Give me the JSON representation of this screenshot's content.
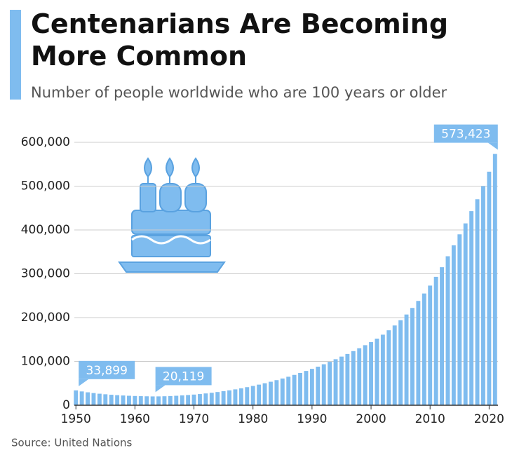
{
  "chart_data": {
    "type": "bar",
    "title": "Centenarians Are Becoming More Common",
    "subtitle": "Number of people worldwide who are 100 years or older",
    "source": "Source: United Nations",
    "color": "#7fbcef",
    "x": [
      1950,
      1951,
      1952,
      1953,
      1954,
      1955,
      1956,
      1957,
      1958,
      1959,
      1960,
      1961,
      1962,
      1963,
      1964,
      1965,
      1966,
      1967,
      1968,
      1969,
      1970,
      1971,
      1972,
      1973,
      1974,
      1975,
      1976,
      1977,
      1978,
      1979,
      1980,
      1981,
      1982,
      1983,
      1984,
      1985,
      1986,
      1987,
      1988,
      1989,
      1990,
      1991,
      1992,
      1993,
      1994,
      1995,
      1996,
      1997,
      1998,
      1999,
      2000,
      2001,
      2002,
      2003,
      2004,
      2005,
      2006,
      2007,
      2008,
      2009,
      2010,
      2011,
      2012,
      2013,
      2014,
      2015,
      2016,
      2017,
      2018,
      2019,
      2020,
      2021
    ],
    "values": [
      33899,
      31500,
      29500,
      27800,
      26300,
      25000,
      23900,
      23000,
      22200,
      21600,
      21100,
      20700,
      20400,
      20119,
      20200,
      20500,
      21000,
      21600,
      22400,
      23300,
      24300,
      25500,
      26900,
      28400,
      30100,
      32000,
      34000,
      36200,
      38600,
      41200,
      44000,
      47000,
      50200,
      53600,
      57200,
      61000,
      65000,
      69200,
      73600,
      78200,
      83000,
      88000,
      93500,
      99000,
      105000,
      111000,
      117000,
      123500,
      130000,
      137000,
      144000,
      152000,
      161000,
      171000,
      182000,
      194000,
      207000,
      222000,
      238000,
      255000,
      273000,
      293000,
      315000,
      340000,
      365000,
      390000,
      415000,
      443000,
      470000,
      500000,
      533000,
      573423
    ],
    "value_labels": [
      "33,899",
      null,
      null,
      null,
      null,
      null,
      null,
      null,
      null,
      null,
      null,
      null,
      null,
      "20,119",
      null,
      null,
      null,
      null,
      null,
      null,
      null,
      null,
      null,
      null,
      null,
      null,
      null,
      null,
      null,
      null,
      null,
      null,
      null,
      null,
      null,
      null,
      null,
      null,
      null,
      null,
      null,
      null,
      null,
      null,
      null,
      null,
      null,
      null,
      null,
      null,
      null,
      null,
      null,
      null,
      null,
      null,
      null,
      null,
      null,
      null,
      null,
      null,
      null,
      null,
      null,
      null,
      null,
      null,
      null,
      null,
      null,
      "573,423"
    ],
    "xlim": [
      1949.5,
      2021.5
    ],
    "xticks": [
      1950,
      1960,
      1970,
      1980,
      1990,
      2000,
      2010,
      2020
    ],
    "ylim": [
      0,
      600000
    ],
    "yticks": [
      0,
      {
        "value": 100000,
        "label": "100,000"
      },
      {
        "value": 200000,
        "label": "200,000"
      },
      {
        "value": 300000,
        "label": "300,000"
      },
      {
        "value": 400000,
        "label": "400,000"
      },
      {
        "value": 500000,
        "label": "500,000"
      },
      {
        "value": 600000,
        "label": "600,000"
      }
    ],
    "grid": true
  }
}
